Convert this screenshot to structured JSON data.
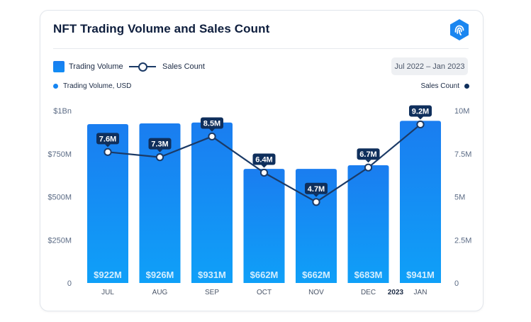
{
  "header": {
    "title": "NFT Trading Volume and Sales Count",
    "date_range": "Jul 2022 – Jan 2023"
  },
  "colors": {
    "bar_top": "#1a7df0",
    "bar_bottom": "#0fa0f8",
    "line": "#1b3a66",
    "label_bg": "#0f2f5c"
  },
  "icons": {
    "logo": "fingerprint-shield-logo"
  },
  "chart_data": {
    "type": "bar",
    "categories": [
      "JUL",
      "AUG",
      "SEP",
      "OCT",
      "NOV",
      "DEC",
      "JAN"
    ],
    "year_marker": {
      "category": "JAN",
      "label": "2023"
    },
    "series": [
      {
        "name": "Trading Volume",
        "axis": "left",
        "axis_title": "Trading Volume, USD",
        "unit": "USD",
        "values": [
          922000000,
          926000000,
          931000000,
          662000000,
          662000000,
          683000000,
          941000000
        ],
        "labels": [
          "$922M",
          "$926M",
          "$931M",
          "$662M",
          "$662M",
          "$683M",
          "$941M"
        ]
      },
      {
        "name": "Sales Count",
        "axis": "right",
        "axis_title": "Sales Count",
        "type": "line",
        "values": [
          7600000,
          7300000,
          8500000,
          6400000,
          4700000,
          6700000,
          9200000
        ],
        "labels": [
          "7.6M",
          "7.3M",
          "8.5M",
          "6.4M",
          "4.7M",
          "6.7M",
          "9.2M"
        ]
      }
    ],
    "left_axis": {
      "ylim": [
        0,
        1000000000
      ],
      "ticks": [
        0,
        250000000,
        500000000,
        750000000,
        1000000000
      ],
      "tick_labels": [
        "0",
        "$250M",
        "$500M",
        "$750M",
        "$1Bn"
      ]
    },
    "right_axis": {
      "ylim": [
        0,
        10000000
      ],
      "ticks": [
        0,
        2500000,
        5000000,
        7500000,
        10000000
      ],
      "tick_labels": [
        "0",
        "2.5M",
        "5M",
        "7.5M",
        "10M"
      ]
    },
    "grid": false,
    "legend_position": "top-left"
  }
}
